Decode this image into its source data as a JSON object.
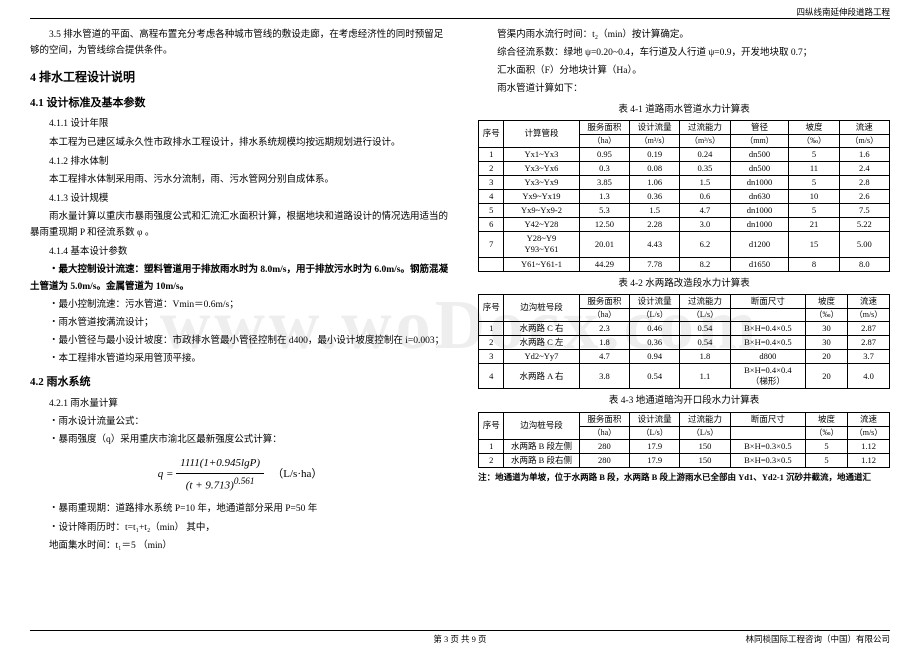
{
  "header": {
    "project": "四纵线南延伸段道路工程"
  },
  "watermark": "www.woDocx.com",
  "left": {
    "p35": "3.5 排水管道的平面、高程布置充分考虑各种城市管线的敷设走廊，在考虑经济性的同时预留足够的空间，为管线综合提供条件。",
    "s4": "4 排水工程设计说明",
    "s41": "4.1 设计标准及基本参数",
    "s411": "4.1.1 设计年限",
    "p411": "本工程为已建区域永久性市政排水工程设计，排水系统规模均按远期规划进行设计。",
    "s412": "4.1.2 排水体制",
    "p412": "本工程排水体制采用雨、污水分流制，雨、污水管网分别自成体系。",
    "s413": "4.1.3 设计规模",
    "p413": "雨水量计算以重庆市暴雨强度公式和汇流汇水面积计算，根据地块和道路设计的情况选用适当的暴雨重现期 P 和径流系数 φ 。",
    "s414": "4.1.4 基本设计参数",
    "b1": "・最大控制设计流速：塑料管道用于排放雨水时为 8.0m/s，用于排放污水时为 6.0m/s。钢筋混凝土管道为 5.0m/s。金属管道为 10m/s。",
    "b2": "・最小控制流速：污水管道：Vmin＝0.6m/s；",
    "b3": "・雨水管道按满流设计；",
    "b4": "・最小管径与最小设计坡度：市政排水管最小管径控制在 d400，最小设计坡度控制在 i=0.003；",
    "b5": "・本工程排水管道均采用管顶平接。",
    "s42": "4.2 雨水系统",
    "s421": "4.2.1 雨水量计算",
    "b6": "・雨水设计流量公式：",
    "b7": "・暴雨强度（q）采用重庆市渝北区最新强度公式计算：",
    "formula_unit": "（L/s·ha）",
    "b8": "・暴雨重现期：道路排水系统 P=10 年，地通道部分采用 P=50 年",
    "b9": "・设计降雨历时：t=t₁+t₂（min）  其中，",
    "b10": "地面集水时间：t₁＝5   （min）"
  },
  "right": {
    "r1": "管渠内雨水流行时间：t₂（min）按计算确定。",
    "r2": "综合径流系数：绿地 ψ=0.20~0.4，车行道及人行道 ψ=0.9，开发地块取 0.7；",
    "r3": "汇水面积（F）分地块计算（Ha）。",
    "r4": "雨水管道计算如下："
  },
  "table1": {
    "title": "表 4-1 道路雨水管道水力计算表",
    "head1": [
      "序号",
      "计算管段",
      "服务面积",
      "设计流量",
      "过流能力",
      "管径",
      "坡度",
      "流速"
    ],
    "head2": [
      "",
      "",
      "（ha）",
      "（m³/s）",
      "（m³/s）",
      "（mm）",
      "（‰）",
      "（m/s）"
    ],
    "rows": [
      [
        "1",
        "Yx1~Yx3",
        "0.95",
        "0.19",
        "0.24",
        "dn500",
        "5",
        "1.6"
      ],
      [
        "2",
        "Yx3~Yx6",
        "0.3",
        "0.08",
        "0.35",
        "dn500",
        "11",
        "2.4"
      ],
      [
        "3",
        "Yx3~Yx9",
        "3.85",
        "1.06",
        "1.5",
        "dn1000",
        "5",
        "2.8"
      ],
      [
        "4",
        "Yx9~Yx19",
        "1.3",
        "0.36",
        "0.6",
        "dn630",
        "10",
        "2.6"
      ],
      [
        "5",
        "Yx9~Yx9-2",
        "5.3",
        "1.5",
        "4.7",
        "dn1000",
        "5",
        "7.5"
      ],
      [
        "6",
        "Y42~Y28",
        "12.50",
        "2.28",
        "3.0",
        "dn1000",
        "21",
        "5.22"
      ],
      [
        "7",
        "Y28~Y9\nY93~Y61",
        "20.01",
        "4.43",
        "6.2",
        "d1200",
        "15",
        "5.00"
      ],
      [
        "",
        "Y61~Y61-1",
        "44.29",
        "7.78",
        "8.2",
        "d1650",
        "8",
        "8.0"
      ]
    ]
  },
  "table2": {
    "title": "表 4-2 水两路改造段水力计算表",
    "head1": [
      "序号",
      "边沟桩号段",
      "服务面积",
      "设计流量",
      "过流能力",
      "断面尺寸",
      "坡度",
      "流速"
    ],
    "head2": [
      "",
      "",
      "（ha）",
      "（L/s）",
      "（L/s）",
      "",
      "（‰）",
      "（m/s）"
    ],
    "rows": [
      [
        "1",
        "水两路 C 右",
        "2.3",
        "0.46",
        "0.54",
        "B×H=0.4×0.5",
        "30",
        "2.87"
      ],
      [
        "2",
        "水两路 C 左",
        "1.8",
        "0.36",
        "0.54",
        "B×H=0.4×0.5",
        "30",
        "2.87"
      ],
      [
        "3",
        "Yd2~Yy7",
        "4.7",
        "0.94",
        "1.8",
        "d800",
        "20",
        "3.7"
      ],
      [
        "4",
        "水两路 A 右",
        "3.8",
        "0.54",
        "1.1",
        "B×H=0.4×0.4\n（梯形）",
        "20",
        "4.0"
      ]
    ]
  },
  "table3": {
    "title": "表 4-3 地通道暗沟开口段水力计算表",
    "head1": [
      "序号",
      "边沟桩号段",
      "服务面积",
      "设计流量",
      "过流能力",
      "断面尺寸",
      "坡度",
      "流速"
    ],
    "head2": [
      "",
      "",
      "（ha）",
      "（L/s）",
      "（L/s）",
      "",
      "（‰）",
      "（m/s）"
    ],
    "rows": [
      [
        "1",
        "水两路 B 段左侧",
        "280",
        "17.9",
        "150",
        "B×H=0.3×0.5",
        "5",
        "1.12"
      ],
      [
        "2",
        "水两路 B 段右侧",
        "280",
        "17.9",
        "150",
        "B×H=0.3×0.5",
        "5",
        "1.12"
      ]
    ]
  },
  "note": "注：地通道为单坡，位于水两路 B 段，水两路 B 段上游雨水已全部由 Yd1、Yd2-1 沉砂井截流，地通道汇",
  "footer": {
    "page": "第 3 页  共 9 页",
    "company": "林同棪国际工程咨询（中国）有限公司"
  }
}
